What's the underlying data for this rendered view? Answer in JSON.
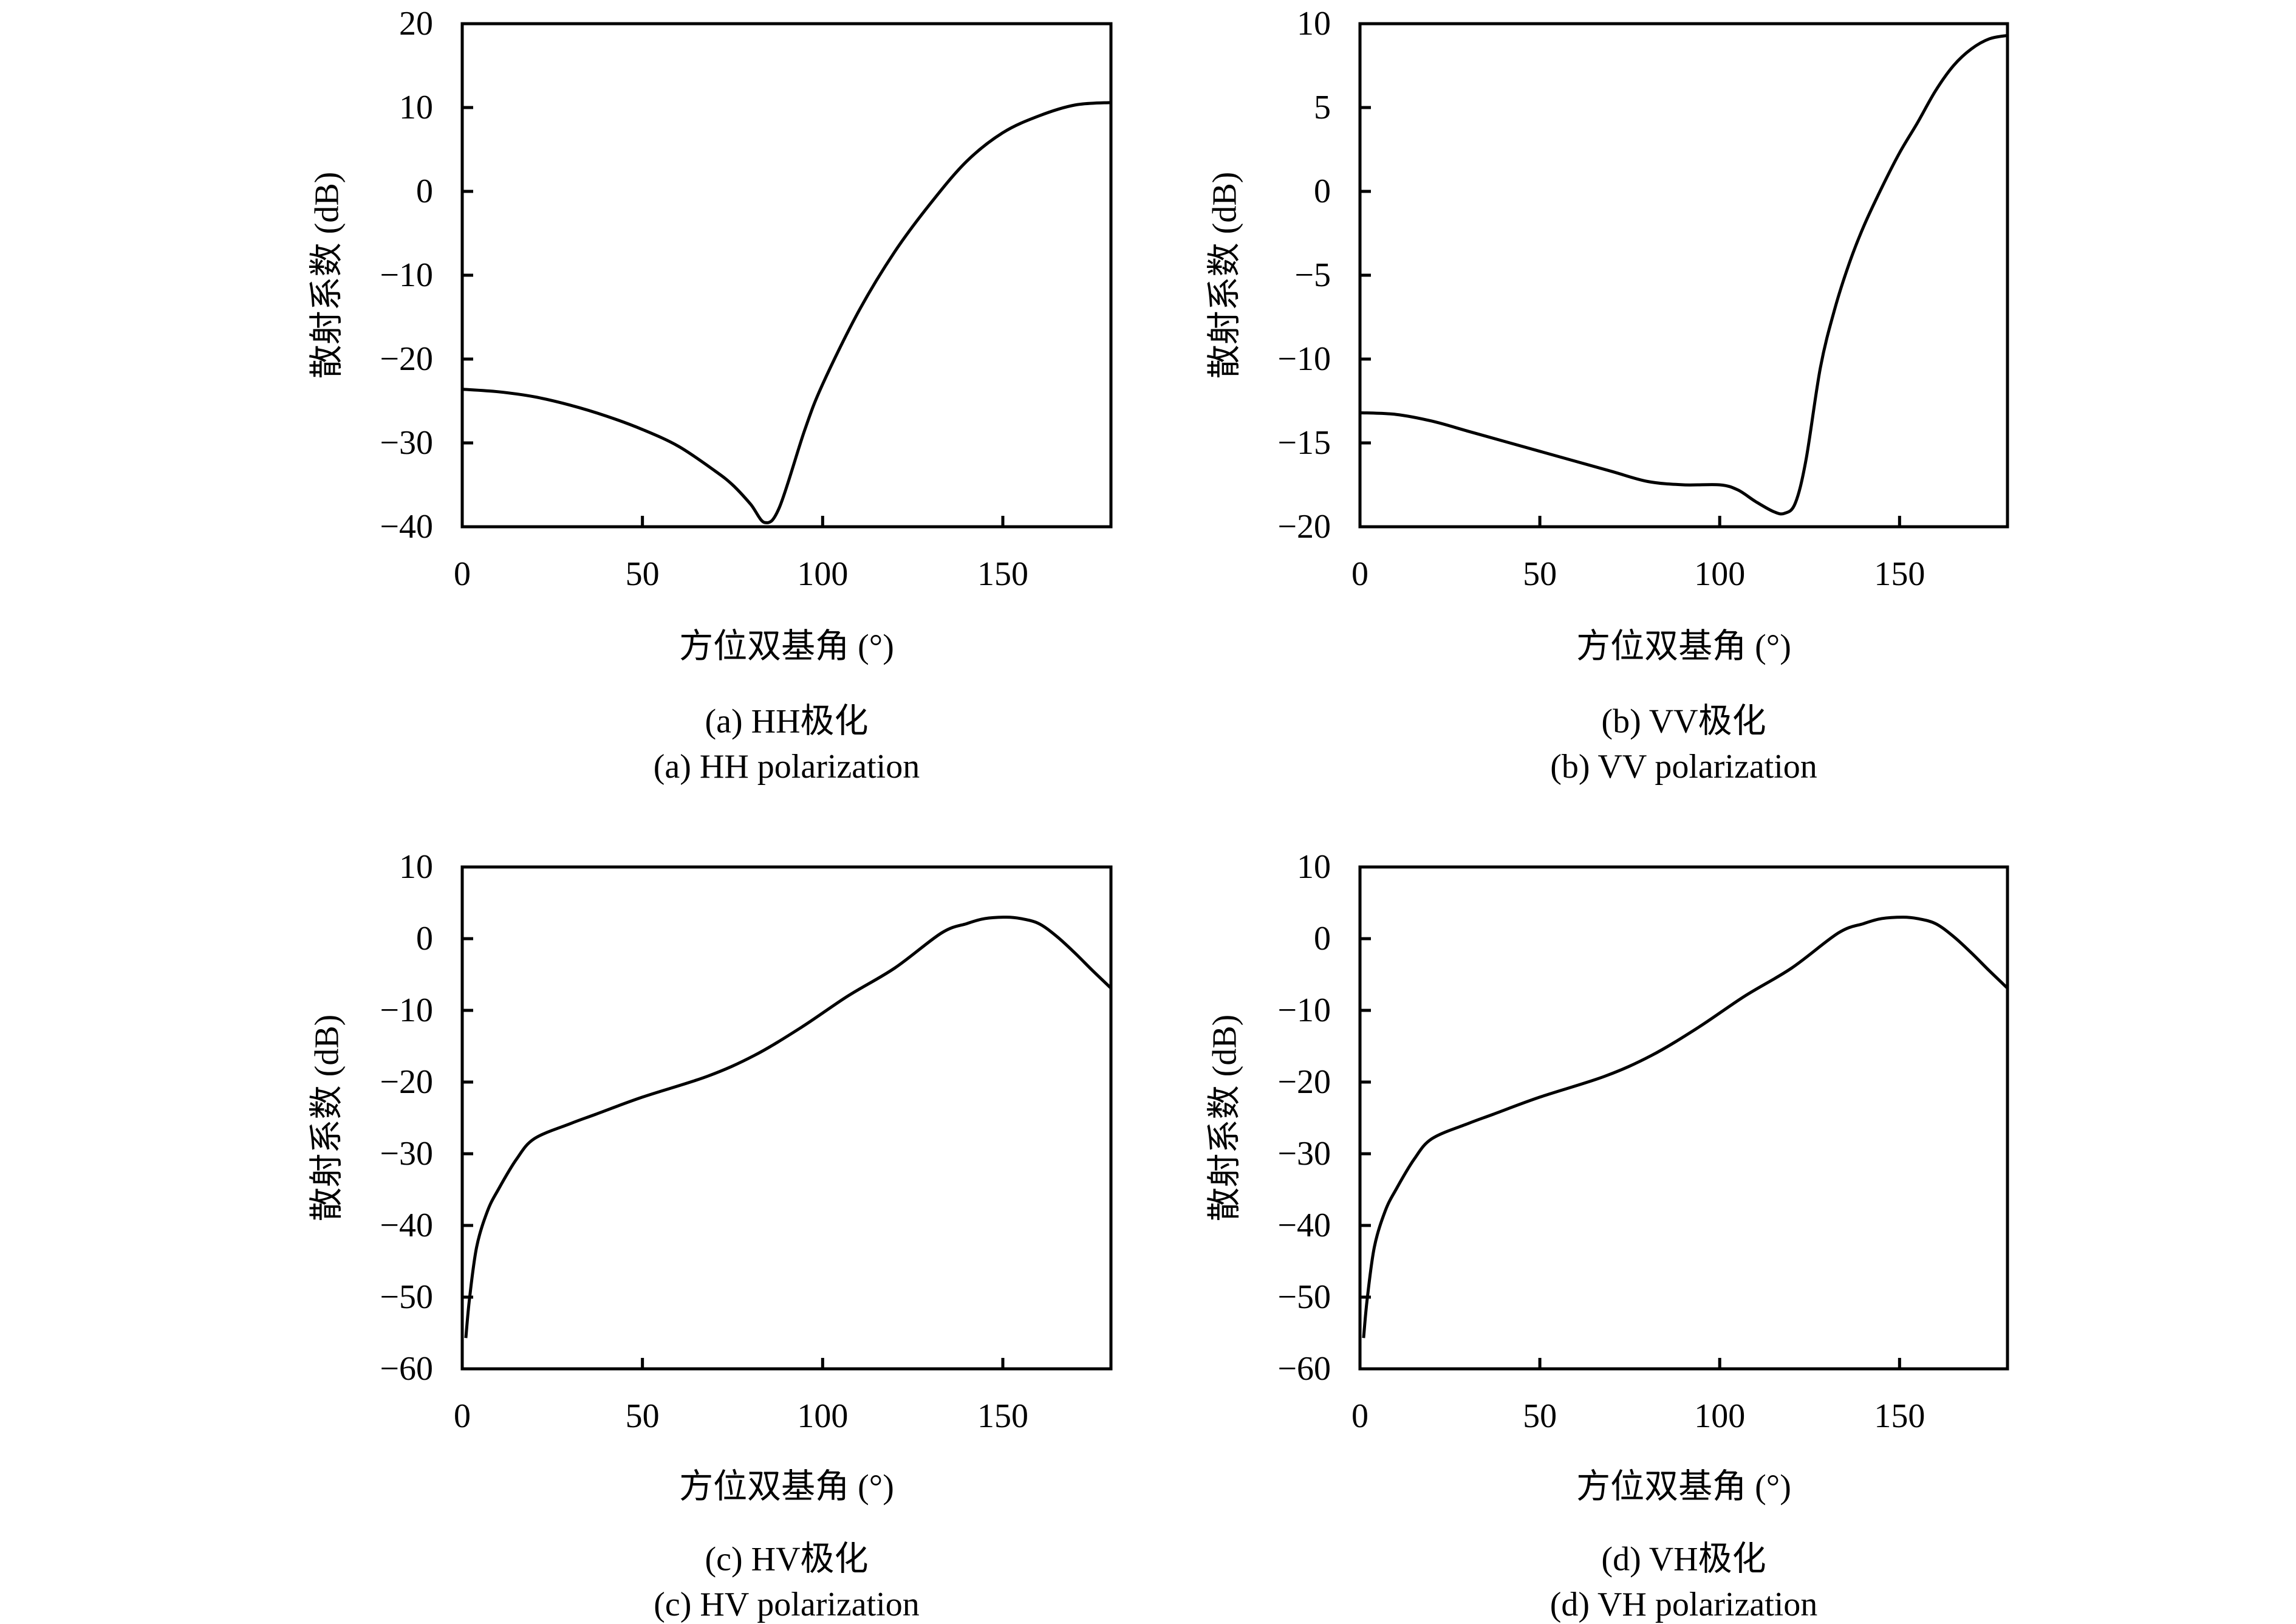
{
  "chart_data": [
    {
      "type": "line",
      "caption_cn": "(a) HH极化",
      "caption_en": "(a) HH polarization",
      "xlabel": "方位双基角 (°)",
      "ylabel": "散射系数 (dB)",
      "xlim": [
        0,
        180
      ],
      "ylim": [
        -40,
        20
      ],
      "xticks": [
        0,
        50,
        100,
        150
      ],
      "yticks": [
        -40,
        -30,
        -20,
        -10,
        0,
        10,
        20
      ],
      "grid": false,
      "x": [
        0,
        10,
        20,
        30,
        40,
        50,
        60,
        70,
        75,
        80,
        84,
        88,
        95,
        100,
        110,
        120,
        130,
        140,
        150,
        160,
        170,
        180
      ],
      "y": [
        -23.6,
        -23.9,
        -24.5,
        -25.5,
        -26.8,
        -28.4,
        -30.4,
        -33.3,
        -35.0,
        -37.3,
        -39.5,
        -37.7,
        -28.5,
        -23.0,
        -14.3,
        -7.2,
        -1.4,
        3.6,
        7.0,
        9.0,
        10.3,
        10.6
      ]
    },
    {
      "type": "line",
      "caption_cn": "(b) VV极化",
      "caption_en": "(b) VV polarization",
      "xlabel": "方位双基角 (°)",
      "ylabel": "散射系数 (dB)",
      "xlim": [
        0,
        180
      ],
      "ylim": [
        -20,
        10
      ],
      "xticks": [
        0,
        50,
        100,
        150
      ],
      "yticks": [
        -20,
        -15,
        -10,
        -5,
        0,
        5,
        10
      ],
      "grid": false,
      "x": [
        0,
        10,
        20,
        30,
        40,
        50,
        60,
        70,
        80,
        90,
        100,
        105,
        110,
        115,
        118,
        121,
        124,
        128,
        132,
        136,
        140,
        145,
        150,
        155,
        160,
        165,
        170,
        175,
        180
      ],
      "y": [
        -13.2,
        -13.3,
        -13.7,
        -14.3,
        -14.9,
        -15.5,
        -16.1,
        -16.7,
        -17.3,
        -17.5,
        -17.5,
        -17.8,
        -18.5,
        -19.1,
        -19.2,
        -18.6,
        -16.0,
        -10.5,
        -7.0,
        -4.3,
        -2.1,
        0.2,
        2.3,
        4.1,
        6.0,
        7.5,
        8.5,
        9.1,
        9.3
      ]
    },
    {
      "type": "line",
      "caption_cn": "(c) HV极化",
      "caption_en": "(c) HV polarization",
      "xlabel": "方位双基角 (°)",
      "ylabel": "散射系数 (dB)",
      "xlim": [
        0,
        180
      ],
      "ylim": [
        -60,
        10
      ],
      "xticks": [
        0,
        50,
        100,
        150
      ],
      "yticks": [
        -60,
        -50,
        -40,
        -30,
        -20,
        -10,
        0,
        10
      ],
      "grid": false,
      "x": [
        1,
        2,
        4,
        7,
        10,
        15,
        20,
        30,
        37,
        50,
        68,
        81,
        94,
        107,
        120,
        133,
        140,
        145,
        151,
        155,
        160,
        165,
        170,
        175,
        180
      ],
      "y": [
        -55.7,
        -50.3,
        -43.0,
        -38.0,
        -35.0,
        -30.8,
        -27.9,
        -25.8,
        -24.5,
        -22.1,
        -19.2,
        -16.3,
        -12.4,
        -8.0,
        -4.1,
        0.8,
        2.1,
        2.8,
        3.0,
        2.8,
        2.1,
        0.3,
        -2.0,
        -4.5,
        -6.9
      ]
    },
    {
      "type": "line",
      "caption_cn": "(d) VH极化",
      "caption_en": "(d) VH polarization",
      "xlabel": "方位双基角 (°)",
      "ylabel": "散射系数 (dB)",
      "xlim": [
        0,
        180
      ],
      "ylim": [
        -60,
        10
      ],
      "xticks": [
        0,
        50,
        100,
        150
      ],
      "yticks": [
        -60,
        -50,
        -40,
        -30,
        -20,
        -10,
        0,
        10
      ],
      "grid": false,
      "x": [
        1,
        2,
        4,
        7,
        10,
        15,
        20,
        30,
        37,
        50,
        68,
        81,
        94,
        107,
        120,
        133,
        140,
        145,
        151,
        155,
        160,
        165,
        170,
        175,
        180
      ],
      "y": [
        -55.7,
        -50.3,
        -43.0,
        -38.0,
        -35.0,
        -30.8,
        -27.9,
        -25.8,
        -24.5,
        -22.1,
        -19.2,
        -16.3,
        -12.4,
        -8.0,
        -4.1,
        0.8,
        2.1,
        2.8,
        3.0,
        2.8,
        2.1,
        0.3,
        -2.0,
        -4.5,
        -6.9
      ]
    }
  ],
  "colors": {
    "line": "#000000",
    "axes": "#000000"
  }
}
